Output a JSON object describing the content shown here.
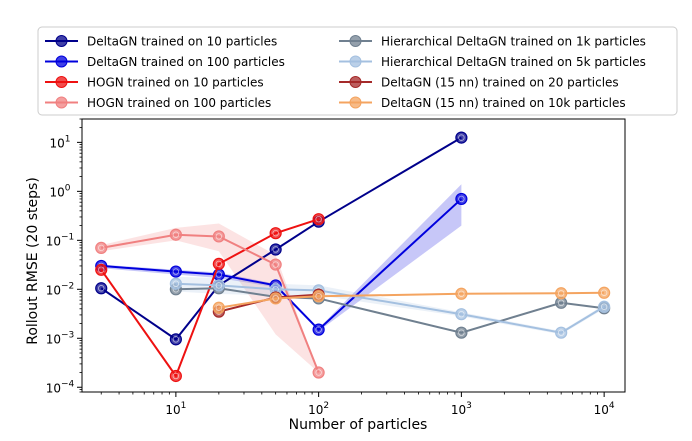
{
  "chart_data": {
    "type": "line",
    "title": "",
    "xlabel": "Number of particles",
    "ylabel": "Rollout RMSE (20 steps)",
    "xscale": "log",
    "yscale": "log",
    "xlim": [
      2.2,
      14000
    ],
    "ylim": [
      8e-05,
      30
    ],
    "xticks": [
      10,
      100,
      1000,
      10000
    ],
    "xtick_labels": [
      {
        "base": "10",
        "exp": "1"
      },
      {
        "base": "10",
        "exp": "2"
      },
      {
        "base": "10",
        "exp": "3"
      },
      {
        "base": "10",
        "exp": "4"
      }
    ],
    "yticks": [
      0.0001,
      0.001,
      0.01,
      0.1,
      1,
      10
    ],
    "ytick_labels": [
      {
        "base": "10",
        "exp": "−4"
      },
      {
        "base": "10",
        "exp": "−3"
      },
      {
        "base": "10",
        "exp": "−2"
      },
      {
        "base": "10",
        "exp": "−1"
      },
      {
        "base": "10",
        "exp": "0"
      },
      {
        "base": "10",
        "exp": "1"
      }
    ],
    "grid": false,
    "legend_placement": "top, above plot, two columns",
    "series": [
      {
        "name": "DeltaGN trained on 10 particles",
        "color": "#00008b",
        "marker": "circle",
        "x": [
          3,
          10,
          20,
          50,
          100,
          1000
        ],
        "y": [
          0.0105,
          0.00095,
          0.012,
          0.065,
          0.24,
          12.5
        ]
      },
      {
        "name": "DeltaGN trained on 100 particles",
        "color": "#0000dd",
        "marker": "circle",
        "x": [
          3,
          10,
          20,
          50,
          100,
          1000
        ],
        "y": [
          0.03,
          0.023,
          0.02,
          0.012,
          0.0015,
          0.7
        ],
        "band_lower": [
          0.027,
          0.02,
          0.017,
          0.011,
          0.0014,
          0.2
        ],
        "band_upper": [
          0.032,
          0.025,
          0.022,
          0.013,
          0.0016,
          1.4
        ]
      },
      {
        "name": "HOGN trained on 10 particles",
        "color": "#ee1111",
        "marker": "circle",
        "x": [
          3,
          10,
          20,
          50,
          100
        ],
        "y": [
          0.025,
          0.00017,
          0.033,
          0.14,
          0.27
        ]
      },
      {
        "name": "HOGN trained on 100 particles",
        "color": "#f08080",
        "marker": "circle",
        "x": [
          3,
          10,
          20,
          50,
          100
        ],
        "y": [
          0.07,
          0.13,
          0.12,
          0.032,
          0.0002
        ],
        "band_lower": [
          0.06,
          0.1,
          0.06,
          0.0012,
          0.0002
        ],
        "band_upper": [
          0.08,
          0.18,
          0.22,
          0.05,
          0.0002
        ]
      },
      {
        "name": "Hierarchical DeltaGN trained on 1k particles",
        "color": "#708090",
        "marker": "circle",
        "x": [
          10,
          20,
          50,
          100,
          1000,
          5000,
          10000
        ],
        "y": [
          0.01,
          0.0105,
          0.007,
          0.0065,
          0.0013,
          0.0053,
          0.0041
        ]
      },
      {
        "name": "Hierarchical DeltaGN trained on 5k particles",
        "color": "#a4c0e0",
        "marker": "circle",
        "x": [
          10,
          20,
          50,
          100,
          1000,
          5000,
          10000
        ],
        "y": [
          0.013,
          0.012,
          0.01,
          0.0095,
          0.0031,
          0.0013,
          0.0044
        ],
        "band_lower": [
          0.009,
          0.008,
          0.0075,
          0.0075,
          0.0028,
          0.0012,
          0.004
        ],
        "band_upper": [
          0.018,
          0.017,
          0.013,
          0.012,
          0.0034,
          0.0014,
          0.0048
        ]
      },
      {
        "name": "DeltaGN (15 nn) trained on 20 particles",
        "color": "#a52a2a",
        "marker": "circle",
        "x": [
          20,
          50,
          100
        ],
        "y": [
          0.0035,
          0.0068,
          0.0078
        ]
      },
      {
        "name": "DeltaGN (15 nn) trained on 10k particles",
        "color": "#f4a460",
        "marker": "circle",
        "x": [
          20,
          50,
          100,
          1000,
          5000,
          10000
        ],
        "y": [
          0.0042,
          0.0065,
          0.0072,
          0.0081,
          0.0083,
          0.0085
        ]
      }
    ]
  }
}
